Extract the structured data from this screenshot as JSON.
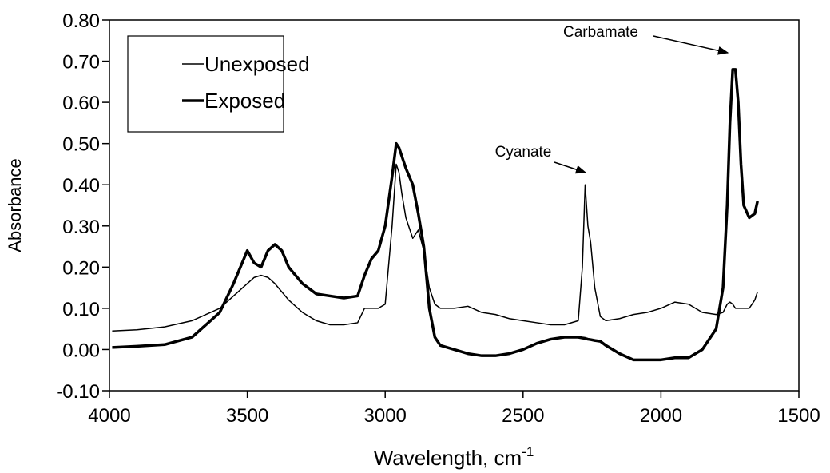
{
  "chart_data": {
    "type": "line",
    "x_label": {
      "text": "Wavelength, cm",
      "superscript": "-1"
    },
    "y_label": "Absorbance",
    "annotations": [
      "Cyanate",
      "Carbamate"
    ],
    "legend": "upper left",
    "xlim": [
      4000,
      1500
    ],
    "xticks": [
      4000,
      3500,
      3000,
      2500,
      2000,
      1500
    ],
    "ylim": [
      -0.1,
      0.8
    ],
    "yticks": [
      {
        "value": -0.1,
        "label": "-0.10"
      },
      {
        "value": 0,
        "label": "0.00"
      },
      {
        "value": 0.1,
        "label": "0.10"
      },
      {
        "value": 0.2,
        "label": "0.20"
      },
      {
        "value": 0.3,
        "label": "0.30"
      },
      {
        "value": 0.4,
        "label": "0.40"
      },
      {
        "value": 0.5,
        "label": "0.50"
      },
      {
        "value": 0.6,
        "label": "0.60"
      },
      {
        "value": 0.7,
        "label": "0.70"
      },
      {
        "value": 0.8,
        "label": "0.80"
      }
    ],
    "x": [
      3990,
      3900,
      3800,
      3700,
      3600,
      3550,
      3500,
      3475,
      3450,
      3425,
      3400,
      3375,
      3350,
      3300,
      3250,
      3200,
      3150,
      3100,
      3075,
      3050,
      3025,
      3000,
      2975,
      2960,
      2950,
      2940,
      2925,
      2900,
      2880,
      2860,
      2840,
      2820,
      2800,
      2750,
      2700,
      2650,
      2600,
      2550,
      2500,
      2450,
      2400,
      2350,
      2300,
      2285,
      2275,
      2265,
      2255,
      2240,
      2220,
      2200,
      2150,
      2100,
      2050,
      2000,
      1950,
      1900,
      1850,
      1800,
      1775,
      1760,
      1750,
      1740,
      1730,
      1720,
      1710,
      1700,
      1680,
      1660,
      1650
    ],
    "series": [
      {
        "name": "Unexposed",
        "color": "#000000",
        "width": 1.5,
        "values": [
          0.045,
          0.048,
          0.055,
          0.07,
          0.1,
          0.13,
          0.16,
          0.175,
          0.18,
          0.175,
          0.16,
          0.14,
          0.12,
          0.09,
          0.07,
          0.06,
          0.06,
          0.065,
          0.1,
          0.1,
          0.1,
          0.11,
          0.3,
          0.45,
          0.43,
          0.38,
          0.32,
          0.27,
          0.29,
          0.24,
          0.15,
          0.11,
          0.1,
          0.1,
          0.105,
          0.09,
          0.085,
          0.075,
          0.07,
          0.065,
          0.06,
          0.06,
          0.07,
          0.2,
          0.4,
          0.3,
          0.26,
          0.15,
          0.08,
          0.07,
          0.075,
          0.085,
          0.09,
          0.1,
          0.115,
          0.11,
          0.09,
          0.085,
          0.09,
          0.11,
          0.115,
          0.11,
          0.1,
          0.1,
          0.1,
          0.1,
          0.1,
          0.12,
          0.14
        ]
      },
      {
        "name": "Exposed",
        "color": "#000000",
        "width": 3.5,
        "values": [
          0.005,
          0.008,
          0.012,
          0.03,
          0.09,
          0.16,
          0.24,
          0.21,
          0.2,
          0.24,
          0.255,
          0.24,
          0.2,
          0.16,
          0.135,
          0.13,
          0.125,
          0.13,
          0.18,
          0.22,
          0.24,
          0.3,
          0.42,
          0.5,
          0.49,
          0.47,
          0.44,
          0.4,
          0.33,
          0.25,
          0.1,
          0.03,
          0.01,
          0.0,
          -0.01,
          -0.015,
          -0.015,
          -0.01,
          0.0,
          0.015,
          0.025,
          0.03,
          0.03,
          0.028,
          0.027,
          0.025,
          0.024,
          0.022,
          0.02,
          0.01,
          -0.01,
          -0.025,
          -0.025,
          -0.025,
          -0.02,
          -0.02,
          0.0,
          0.05,
          0.15,
          0.35,
          0.55,
          0.68,
          0.68,
          0.6,
          0.45,
          0.35,
          0.32,
          0.33,
          0.36
        ]
      }
    ]
  }
}
